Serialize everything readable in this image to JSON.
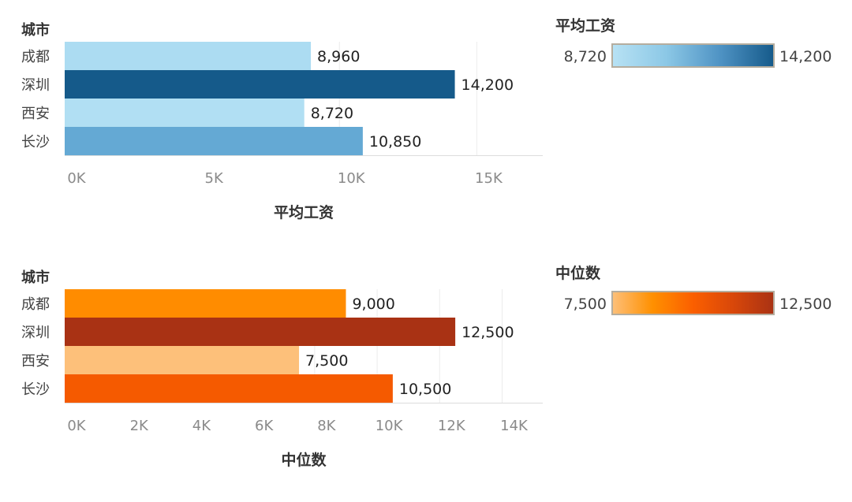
{
  "chart_data": [
    {
      "type": "bar",
      "orientation": "horizontal",
      "row_header": "城市",
      "categories": [
        "成都",
        "深圳",
        "西安",
        "长沙"
      ],
      "values": [
        8960,
        14200,
        8720,
        10850
      ],
      "value_labels": [
        "8,960",
        "14,200",
        "8,720",
        "10,850"
      ],
      "colors": [
        "#acdcf2",
        "#155a8a",
        "#b1dff3",
        "#64a9d4"
      ],
      "xlabel": "平均工资",
      "xlim": [
        0,
        17400
      ],
      "ticks": [
        0,
        5000,
        10000,
        15000
      ],
      "tick_labels": [
        "0K",
        "5K",
        "10K",
        "15K"
      ],
      "grid": true,
      "legend": {
        "title": "平均工资",
        "min_label": "8,720",
        "max_label": "14,200",
        "gradient": [
          "#b8e2f4",
          "#8cc8e6",
          "#4f93c4",
          "#155a8a"
        ],
        "placement": "right"
      }
    },
    {
      "type": "bar",
      "orientation": "horizontal",
      "row_header": "城市",
      "categories": [
        "成都",
        "深圳",
        "西安",
        "长沙"
      ],
      "values": [
        9000,
        12500,
        7500,
        10500
      ],
      "value_labels": [
        "9,000",
        "12,500",
        "7,500",
        "10,500"
      ],
      "colors": [
        "#ff8c00",
        "#a93214",
        "#fdc07a",
        "#f55a00"
      ],
      "xlabel": "中位数",
      "xlim": [
        0,
        15300
      ],
      "ticks": [
        0,
        2000,
        4000,
        6000,
        8000,
        10000,
        12000,
        14000
      ],
      "tick_labels": [
        "0K",
        "2K",
        "4K",
        "6K",
        "8K",
        "10K",
        "12K",
        "14K"
      ],
      "grid": true,
      "legend": {
        "title": "中位数",
        "min_label": "7,500",
        "max_label": "12,500",
        "gradient": [
          "#fdc07a",
          "#ff9000",
          "#fb5f00",
          "#d8470a",
          "#a93214"
        ],
        "placement": "right"
      }
    }
  ]
}
